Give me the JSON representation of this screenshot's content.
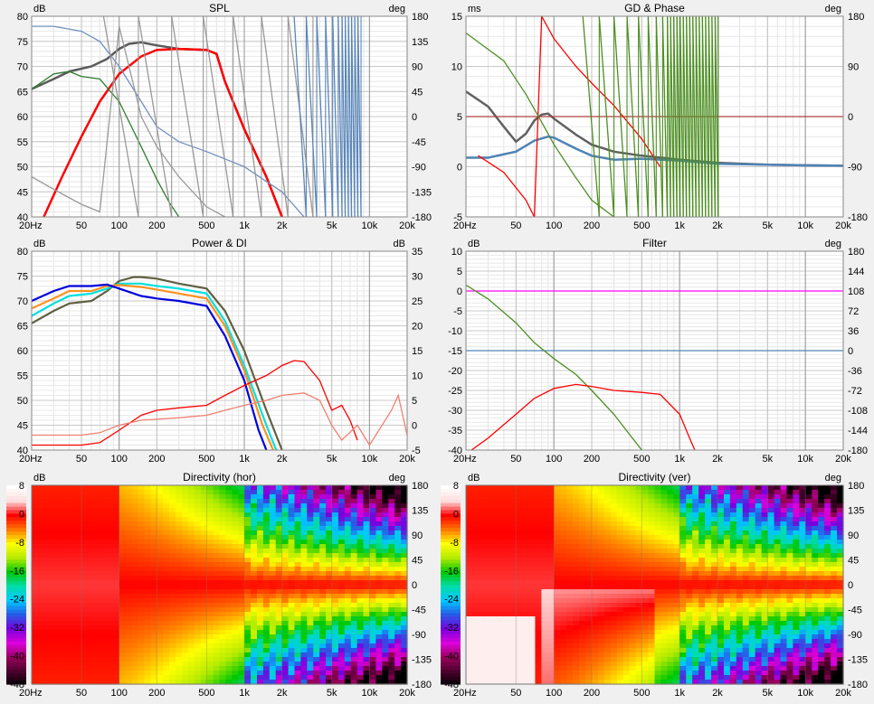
{
  "app": {
    "panel_titles": {
      "spl": "SPL",
      "gd_phase": "GD & Phase",
      "power_di": "Power & DI",
      "filter": "Filter",
      "dir_hor": "Directivity (hor)",
      "dir_ver": "Directivity (ver)"
    }
  },
  "chart_data": [
    {
      "id": "spl",
      "type": "line",
      "title": "SPL",
      "ylabel": "dB",
      "y2label": "deg",
      "xscale": "log",
      "xlim": [
        20,
        20000
      ],
      "ylim": [
        40,
        80
      ],
      "y2lim": [
        -180,
        180
      ],
      "x_ticks": [
        "20Hz",
        "50",
        "100",
        "200",
        "500",
        "1k",
        "2k",
        "5k",
        "10k",
        "20k"
      ],
      "y_ticks": [
        "40",
        "45",
        "50",
        "55",
        "60",
        "65",
        "70",
        "75",
        "80"
      ],
      "y2_ticks": [
        "-180",
        "-135",
        "-90",
        "-45",
        "0",
        "45",
        "90",
        "135",
        "180"
      ],
      "series": [
        {
          "color": "#5a5a5a",
          "axis": "left",
          "x": [
            20,
            30,
            40,
            60,
            80,
            100,
            120,
            150,
            200,
            300,
            500,
            600,
            700,
            1000,
            1500,
            2000
          ],
          "y": [
            65.5,
            67.5,
            69,
            70,
            71.5,
            73.5,
            74.5,
            74.8,
            74.2,
            73.5,
            73.3,
            72.5,
            67,
            57.5,
            48,
            40
          ]
        },
        {
          "color": "#ff0000",
          "axis": "left",
          "x": [
            25,
            35,
            50,
            70,
            100,
            150,
            200,
            300,
            500,
            600,
            700,
            1000,
            1500,
            2000
          ],
          "y": [
            40,
            48,
            56,
            63,
            68.5,
            72,
            73.3,
            73.5,
            73.3,
            72.5,
            67,
            57.5,
            48,
            40
          ]
        },
        {
          "color": "#2f7f2f",
          "axis": "left",
          "x": [
            20,
            30,
            40,
            50,
            70,
            100,
            150,
            200,
            250,
            300
          ],
          "y": [
            65.5,
            68.5,
            69,
            68,
            67.5,
            63,
            54,
            47.5,
            43,
            40
          ]
        },
        {
          "color": "#7090c0",
          "axis": "left",
          "x": [
            20,
            30,
            50,
            70,
            100,
            150,
            200,
            300,
            500,
            1000,
            2000,
            3000,
            5000
          ],
          "y": [
            78,
            78,
            77,
            75,
            70,
            63,
            58,
            55,
            53,
            50,
            45,
            40,
            36
          ]
        },
        {
          "color": "#9a9a9a",
          "axis": "left",
          "x": [
            20,
            30,
            50,
            70,
            100,
            150,
            200,
            300,
            500,
            700
          ],
          "y": [
            48,
            45.5,
            42.5,
            41,
            78,
            60,
            54,
            48,
            42,
            40
          ]
        }
      ]
    },
    {
      "id": "gd_phase",
      "type": "line",
      "title": "GD & Phase",
      "ylabel": "ms",
      "y2label": "deg",
      "xscale": "log",
      "xlim": [
        20,
        20000
      ],
      "ylim": [
        -5,
        15
      ],
      "y2lim": [
        -180,
        180
      ],
      "x_ticks": [
        "20Hz",
        "50",
        "100",
        "200",
        "500",
        "1k",
        "2k",
        "5k",
        "10k",
        "20k"
      ],
      "y_ticks": [
        "-5",
        "0",
        "5",
        "10",
        "15"
      ],
      "y2_ticks": [
        "-180",
        "-90",
        "0",
        "90",
        "180"
      ],
      "series": [
        {
          "color": "#606060",
          "axis": "left",
          "x": [
            20,
            30,
            40,
            50,
            60,
            70,
            80,
            90,
            100,
            150,
            200,
            300,
            500,
            1000,
            2000,
            5000,
            20000
          ],
          "y": [
            7.5,
            6,
            4,
            2.5,
            3.3,
            4.6,
            5.2,
            5.3,
            4.8,
            3.2,
            2.2,
            1.5,
            1.1,
            0.7,
            0.4,
            0.2,
            0.1
          ]
        },
        {
          "color": "#4f83b4",
          "axis": "left",
          "x": [
            20,
            30,
            50,
            70,
            90,
            100,
            150,
            200,
            300,
            500,
            1000,
            2000,
            5000,
            20000
          ],
          "y": [
            0.9,
            0.9,
            1.5,
            2.6,
            3.0,
            2.9,
            1.8,
            1.1,
            0.7,
            0.8,
            0.6,
            0.3,
            0.2,
            0.1
          ]
        },
        {
          "color": "#b04040",
          "axis": "left",
          "x": [
            20,
            20000
          ],
          "y": [
            5,
            5
          ]
        },
        {
          "color": "#ff0000",
          "axis": "right",
          "x": [
            25,
            40,
            60,
            70,
            80,
            100,
            150,
            200,
            300,
            500,
            700
          ],
          "y": [
            -70,
            -100,
            -150,
            -180,
            180,
            140,
            90,
            60,
            20,
            -40,
            -90
          ]
        },
        {
          "color": "#4d8f22",
          "axis": "right",
          "x": [
            20,
            40,
            60,
            80,
            100,
            150,
            200,
            300
          ],
          "y": [
            150,
            100,
            40,
            -10,
            -50,
            -110,
            -150,
            -180
          ]
        }
      ]
    },
    {
      "id": "power_di",
      "type": "line",
      "title": "Power & DI",
      "ylabel": "dB",
      "y2label": "dB",
      "xscale": "log",
      "xlim": [
        20,
        20000
      ],
      "ylim": [
        40,
        80
      ],
      "y2lim": [
        -5,
        35
      ],
      "x_ticks": [
        "20Hz",
        "50",
        "100",
        "200",
        "500",
        "1k",
        "2k",
        "5k",
        "10k",
        "20k"
      ],
      "y_ticks": [
        "40",
        "45",
        "50",
        "55",
        "60",
        "65",
        "70",
        "75",
        "80"
      ],
      "y2_ticks": [
        "-5",
        "0",
        "5",
        "10",
        "15",
        "20",
        "25",
        "30",
        "35"
      ],
      "series": [
        {
          "color": "#606040",
          "axis": "left",
          "x": [
            20,
            30,
            40,
            60,
            80,
            100,
            130,
            150,
            200,
            300,
            500,
            700,
            1000,
            1500,
            2000
          ],
          "y": [
            65.5,
            68,
            69.5,
            70,
            72,
            74,
            74.8,
            74.8,
            74.5,
            73.5,
            72.5,
            68,
            60,
            48,
            40
          ]
        },
        {
          "color": "#00e0e0",
          "axis": "left",
          "x": [
            20,
            30,
            40,
            60,
            80,
            100,
            150,
            200,
            300,
            500,
            700,
            1000,
            1500,
            1800
          ],
          "y": [
            67,
            69.5,
            71,
            71.5,
            72.5,
            73.5,
            73.5,
            73,
            72.5,
            71.5,
            66,
            57,
            45,
            40
          ]
        },
        {
          "color": "#ff9020",
          "axis": "left",
          "x": [
            20,
            30,
            40,
            60,
            80,
            100,
            150,
            200,
            300,
            500,
            700,
            1000,
            1400,
            1700
          ],
          "y": [
            68.5,
            70.5,
            72,
            72,
            73,
            73.2,
            72.8,
            72.3,
            71.5,
            70.5,
            65,
            56,
            45,
            40
          ]
        },
        {
          "color": "#0000e0",
          "axis": "left",
          "x": [
            20,
            30,
            40,
            60,
            80,
            100,
            150,
            200,
            300,
            500,
            700,
            1000,
            1300,
            1500
          ],
          "y": [
            70,
            72,
            73,
            73,
            73.3,
            72.5,
            71,
            70.5,
            70,
            69,
            63,
            54,
            44,
            40
          ]
        },
        {
          "color": "#ff0000",
          "axis": "right",
          "x": [
            20,
            50,
            70,
            100,
            150,
            200,
            300,
            500,
            700,
            1000,
            1500,
            2000,
            2500,
            3000,
            4000,
            5000,
            6000,
            7000,
            8000
          ],
          "y": [
            -4,
            -4,
            -3.5,
            -1,
            2,
            3,
            3.5,
            4,
            6,
            8,
            10,
            12,
            13,
            12.8,
            9,
            3,
            4,
            1,
            -3
          ]
        },
        {
          "color": "#f08070",
          "axis": "right",
          "x": [
            20,
            50,
            70,
            100,
            150,
            200,
            300,
            500,
            700,
            1000,
            1500,
            2000,
            3000,
            4000,
            5000,
            6000,
            8000,
            10000,
            15000,
            17000,
            20000
          ],
          "y": [
            -2,
            -2,
            -1.5,
            0,
            1,
            1.2,
            1.5,
            2,
            3,
            4,
            5,
            6,
            6.5,
            5,
            0,
            -3,
            0,
            -4,
            3,
            6,
            -2
          ]
        }
      ]
    },
    {
      "id": "filter",
      "type": "line",
      "title": "Filter",
      "ylabel": "dB",
      "y2label": "deg",
      "xscale": "log",
      "xlim": [
        20,
        20000
      ],
      "ylim": [
        -40,
        10
      ],
      "y2lim": [
        -180,
        180
      ],
      "x_ticks": [
        "20Hz",
        "50",
        "100",
        "200",
        "500",
        "1k",
        "2k",
        "5k",
        "10k",
        "20k"
      ],
      "y_ticks": [
        "-40",
        "-35",
        "-30",
        "-25",
        "-20",
        "-15",
        "-10",
        "-5",
        "0",
        "5",
        "10"
      ],
      "y2_ticks": [
        "-180",
        "-144",
        "-108",
        "-72",
        "-36",
        "0",
        "36",
        "72",
        "108",
        "144",
        "180"
      ],
      "series": [
        {
          "color": "#ff00ff",
          "axis": "left",
          "x": [
            20,
            20000
          ],
          "y": [
            0,
            0
          ]
        },
        {
          "color": "#4f83b4",
          "axis": "left",
          "x": [
            20,
            20000
          ],
          "y": [
            -15,
            -15
          ]
        },
        {
          "color": "#4d8f22",
          "axis": "left",
          "x": [
            20,
            30,
            50,
            70,
            100,
            150,
            200,
            300,
            500,
            600
          ],
          "y": [
            1.5,
            -2,
            -8,
            -13,
            -17,
            -21,
            -25,
            -31,
            -40,
            -43
          ]
        },
        {
          "color": "#ff0000",
          "axis": "left",
          "x": [
            20,
            30,
            50,
            70,
            100,
            150,
            200,
            300,
            500,
            700,
            1000,
            1200,
            1500
          ],
          "y": [
            -41,
            -37,
            -31,
            -27,
            -24.5,
            -23.5,
            -24,
            -25,
            -25.5,
            -26,
            -31,
            -37,
            -44
          ]
        }
      ]
    },
    {
      "id": "dir_hor",
      "type": "heatmap",
      "title": "Directivity (hor)",
      "ylabel": "dB",
      "y2label": "deg",
      "xscale": "log",
      "xlim": [
        20,
        20000
      ],
      "y2lim": [
        -180,
        180
      ],
      "colorbar_range": [
        -48,
        8
      ],
      "x_ticks": [
        "20Hz",
        "50",
        "100",
        "200",
        "500",
        "1k",
        "2k",
        "5k",
        "10k",
        "20k"
      ],
      "y2_ticks": [
        "-180",
        "-135",
        "-90",
        "-45",
        "0",
        "45",
        "90",
        "135",
        "180"
      ],
      "colorbar_ticks": [
        "8",
        "0",
        "-8",
        "-16",
        "-24",
        "-32",
        "-40",
        "-48"
      ]
    },
    {
      "id": "dir_ver",
      "type": "heatmap",
      "title": "Directivity (ver)",
      "ylabel": "dB",
      "y2label": "deg",
      "xscale": "log",
      "xlim": [
        20,
        20000
      ],
      "y2lim": [
        -180,
        180
      ],
      "colorbar_range": [
        -48,
        8
      ],
      "x_ticks": [
        "20Hz",
        "50",
        "100",
        "200",
        "500",
        "1k",
        "2k",
        "5k",
        "10k",
        "20k"
      ],
      "y2_ticks": [
        "-180",
        "-135",
        "-90",
        "-45",
        "0",
        "45",
        "90",
        "135",
        "180"
      ],
      "colorbar_ticks": [
        "8",
        "0",
        "-8",
        "-16",
        "-24",
        "-32",
        "-40",
        "-48"
      ]
    }
  ]
}
